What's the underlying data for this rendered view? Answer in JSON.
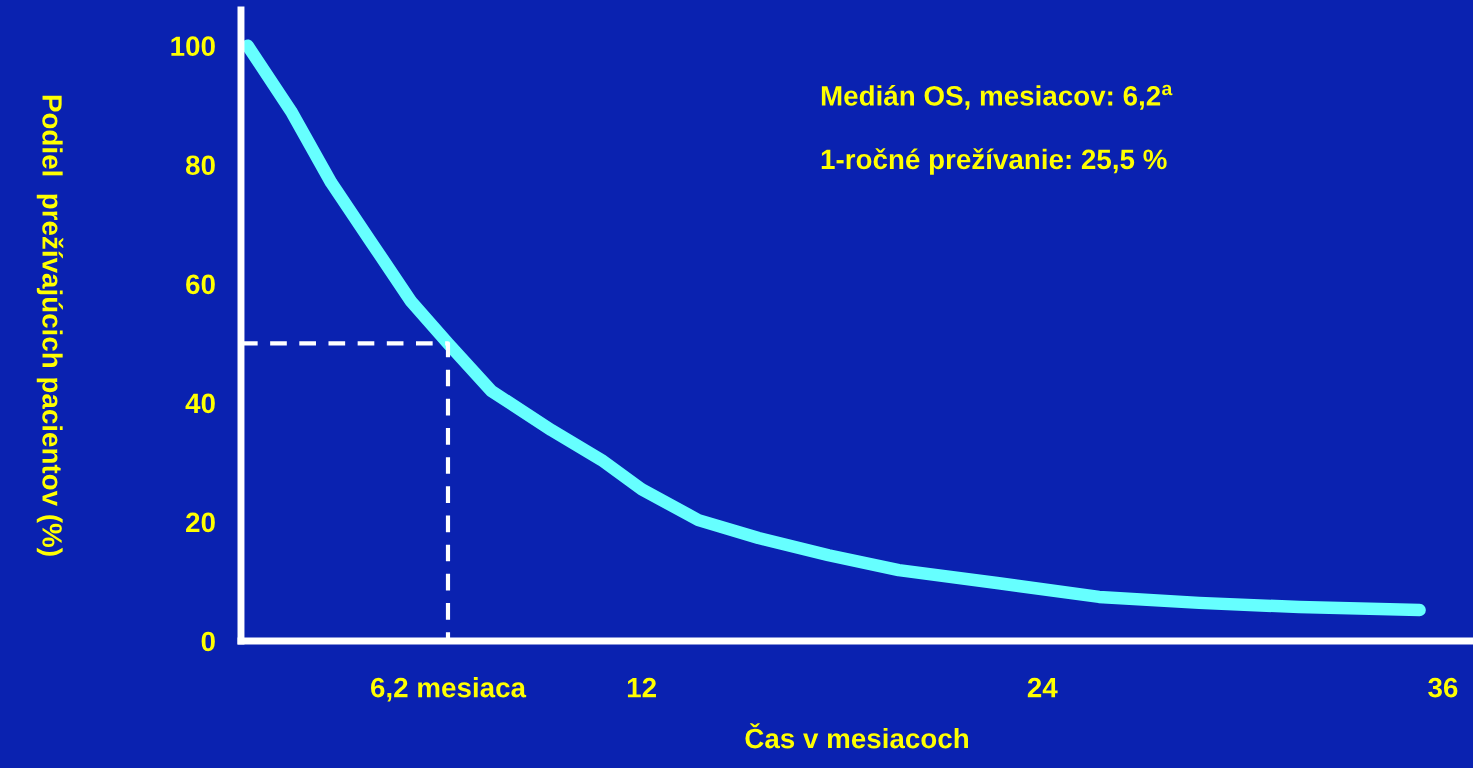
{
  "chart_data": {
    "type": "line",
    "xlabel": "Čas v mesiacoch",
    "ylabel": "Podiel  prežívajúcich pacientov (%)",
    "xlim": [
      0,
      36.9
    ],
    "ylim": [
      0,
      106
    ],
    "xticks": [
      {
        "value": 6.2,
        "label": "6,2 mesiaca"
      },
      12,
      24,
      36
    ],
    "yticks": [
      0,
      20,
      40,
      60,
      80,
      100
    ],
    "grid": false,
    "legend": false,
    "marker": "none",
    "series": [
      {
        "color": "#66ffff",
        "line_style": "solid",
        "x": [
          0.2,
          1.5,
          2.7,
          3.9,
          5.1,
          6.2,
          7.5,
          9.3,
          10.8,
          12,
          13.7,
          15.5,
          17.6,
          19.7,
          22.7,
          25.7,
          28.7,
          31.7,
          35.3
        ],
        "values": [
          100,
          89,
          77,
          67,
          57,
          50,
          42,
          35.4,
          30.4,
          25.5,
          20.3,
          17.3,
          14.4,
          11.9,
          9.7,
          7.4,
          6.4,
          5.7,
          5.2
        ]
      },
      {
        "color": "#ffffff",
        "line_style": "dashed",
        "x": [
          0,
          6.2,
          6.2
        ],
        "values": [
          50,
          50,
          0
        ]
      }
    ],
    "annotations": [
      "Medián OS, mesiacov: 6,2$^{a}$",
      "1-ročné prežívanie: 25,5 %"
    ]
  }
}
